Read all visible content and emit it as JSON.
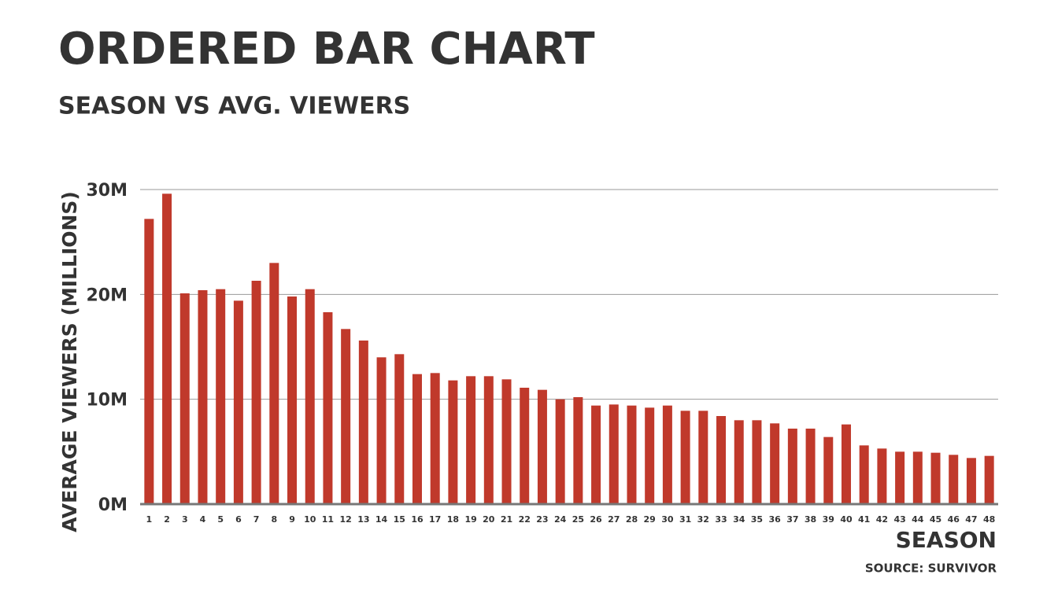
{
  "chart_data": {
    "type": "bar",
    "title": "ORDERED BAR CHART",
    "subtitle": "SEASON VS AVG. VIEWERS",
    "y_label": "AVERAGE VIEWERS (MILLIONS)",
    "x_label": "SEASON",
    "source": "SOURCE: SURVIVOR",
    "categories": [
      "1",
      "2",
      "3",
      "4",
      "5",
      "6",
      "7",
      "8",
      "9",
      "10",
      "11",
      "12",
      "13",
      "14",
      "15",
      "16",
      "17",
      "18",
      "19",
      "20",
      "21",
      "22",
      "23",
      "24",
      "25",
      "26",
      "27",
      "28",
      "29",
      "30",
      "31",
      "32",
      "33",
      "34",
      "35",
      "36",
      "37",
      "38",
      "39",
      "40",
      "41",
      "42",
      "43",
      "44",
      "45",
      "46",
      "47",
      "48"
    ],
    "values": [
      27.2,
      29.6,
      20.1,
      20.4,
      20.5,
      19.4,
      21.3,
      23.0,
      19.8,
      20.5,
      18.3,
      16.7,
      15.6,
      14.0,
      14.3,
      12.4,
      12.5,
      11.8,
      12.2,
      12.2,
      11.9,
      11.1,
      10.9,
      10.0,
      10.2,
      9.4,
      9.5,
      9.4,
      9.2,
      9.4,
      8.9,
      8.9,
      8.4,
      8.0,
      8.0,
      7.7,
      7.2,
      7.2,
      6.4,
      7.6,
      5.6,
      5.3,
      5.0,
      5.0,
      4.9,
      4.7,
      4.4,
      4.6
    ],
    "color": "#c0392b",
    "ylim": [
      0,
      30
    ],
    "yticks": [
      {
        "value": 0,
        "label": "0M"
      },
      {
        "value": 10,
        "label": "10M"
      },
      {
        "value": 20,
        "label": "20M"
      },
      {
        "value": 30,
        "label": "30M"
      }
    ],
    "grid": true
  }
}
